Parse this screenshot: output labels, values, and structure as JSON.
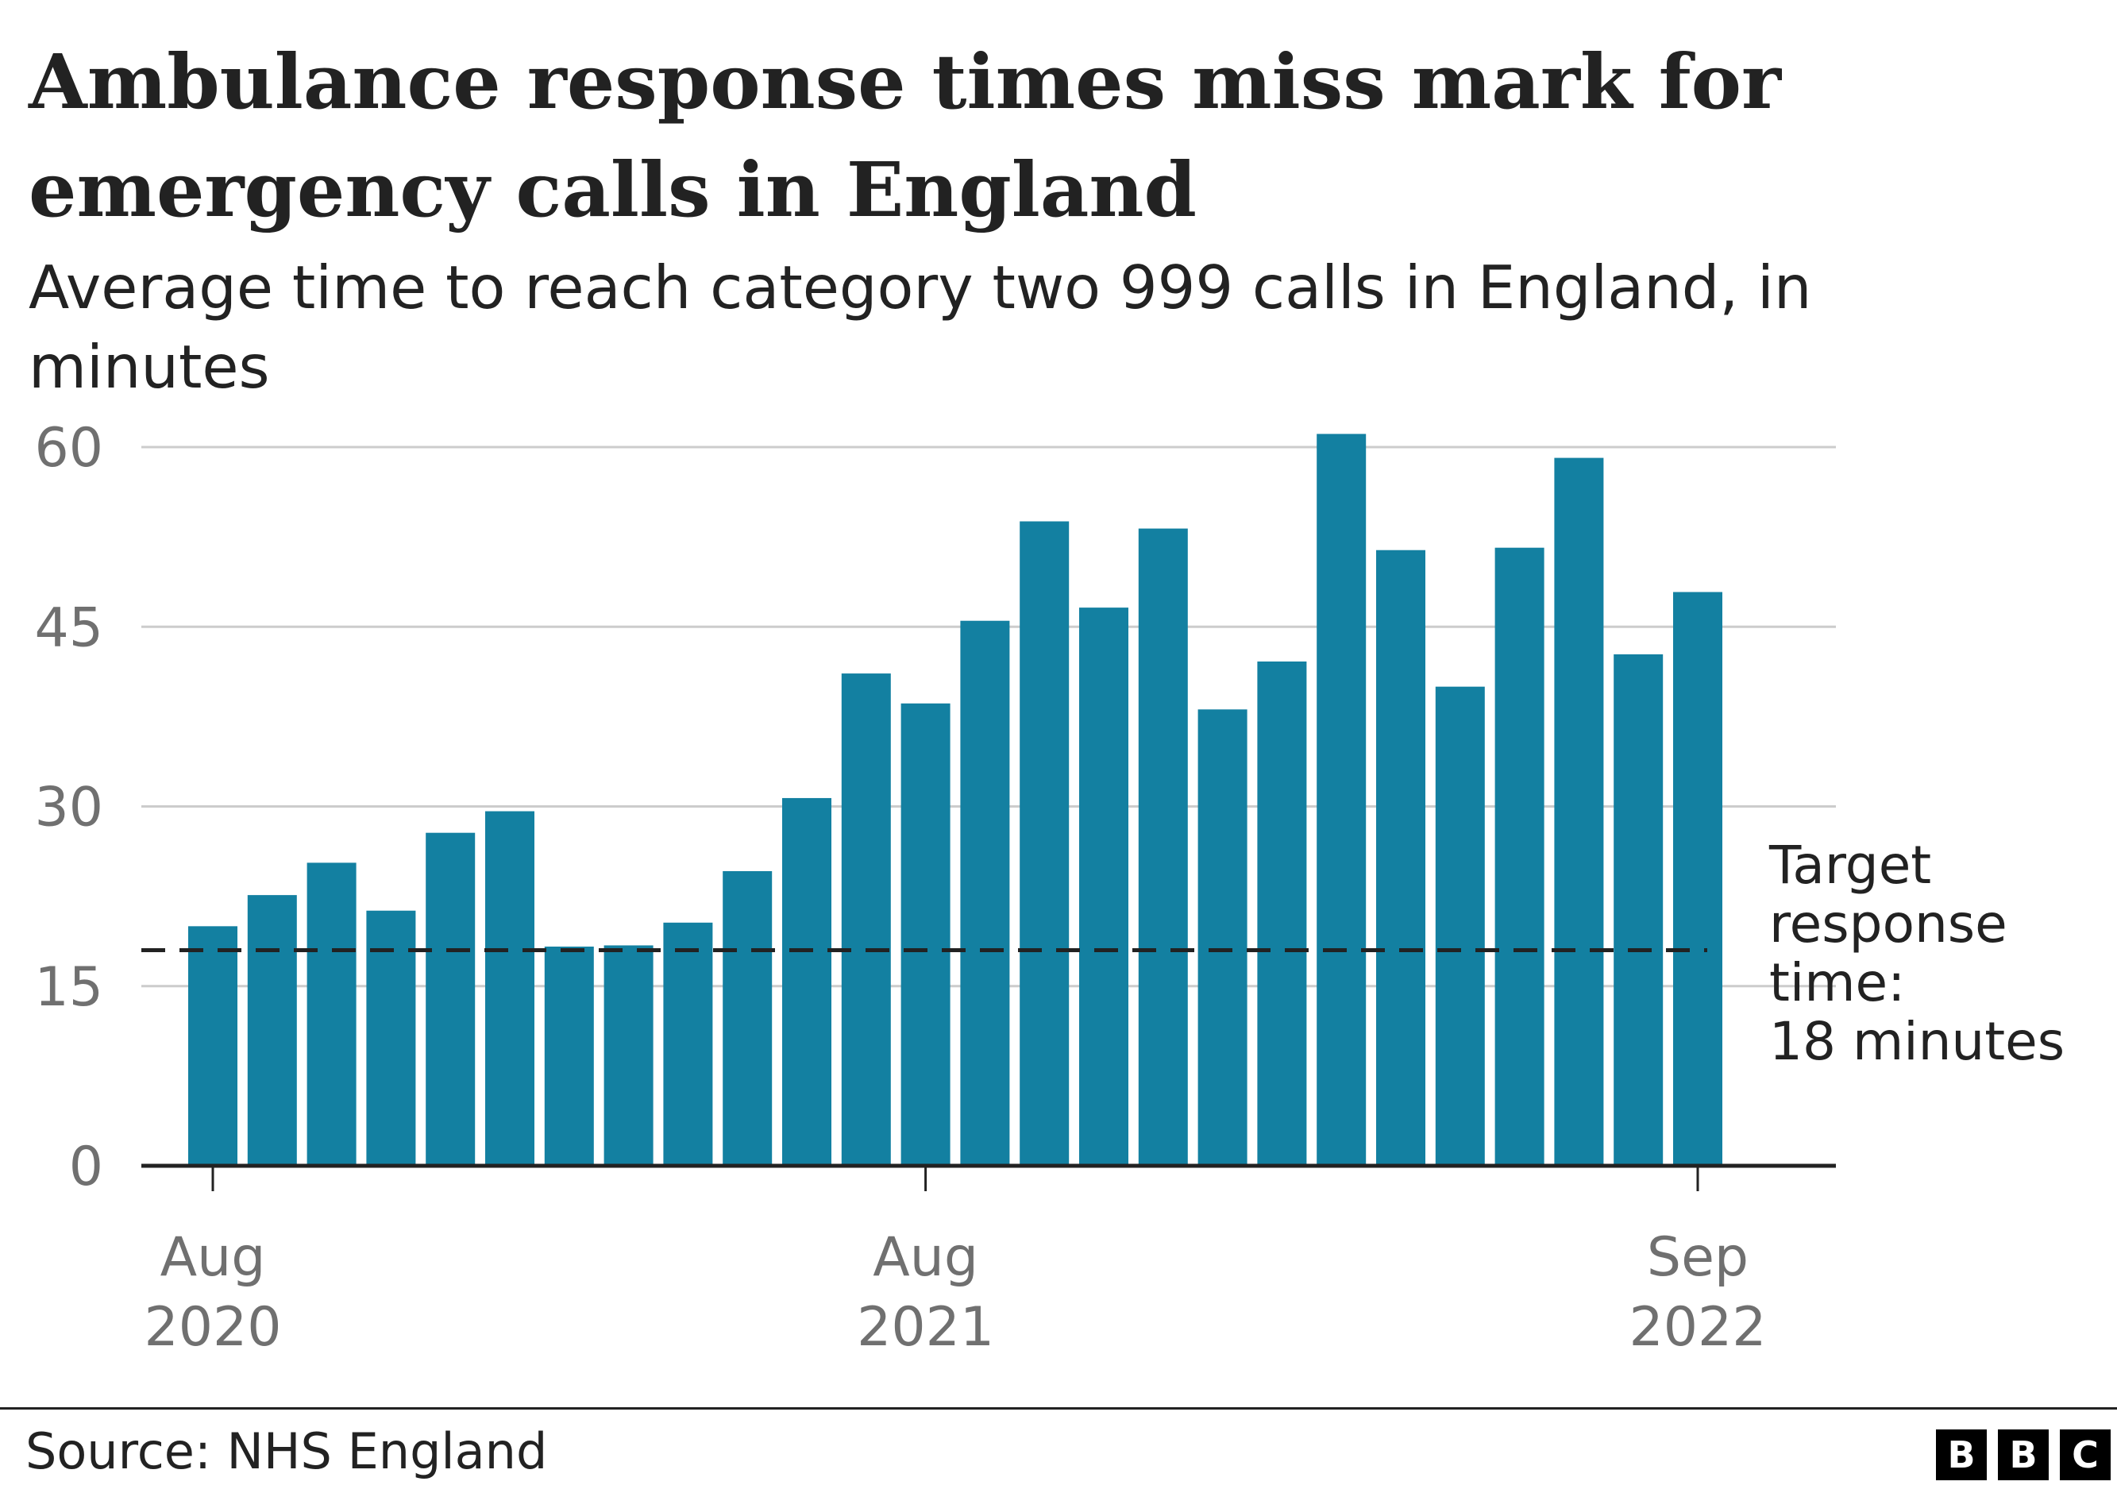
{
  "chart_data": {
    "type": "bar",
    "title": "Ambulance response times miss mark for emergency calls in England",
    "subtitle": "Average time to reach category two 999 calls in England, in minutes",
    "categories": [
      "Aug 2020",
      "Sep 2020",
      "Oct 2020",
      "Nov 2020",
      "Dec 2020",
      "Jan 2021",
      "Feb 2021",
      "Mar 2021",
      "Apr 2021",
      "May 2021",
      "Jun 2021",
      "Jul 2021",
      "Aug 2021",
      "Sep 2021",
      "Oct 2021",
      "Nov 2021",
      "Dec 2021",
      "Jan 2022",
      "Feb 2022",
      "Mar 2022",
      "Apr 2022",
      "May 2022",
      "Jun 2022",
      "Jul 2022",
      "Aug 2022",
      "Sep 2022"
    ],
    "values": [
      20.0,
      22.6,
      25.3,
      21.3,
      27.8,
      29.6,
      18.3,
      18.4,
      20.3,
      24.6,
      30.7,
      41.1,
      38.6,
      45.5,
      53.8,
      46.6,
      53.2,
      38.1,
      42.1,
      61.1,
      51.4,
      40.0,
      51.6,
      59.1,
      42.7,
      47.9
    ],
    "xlabel": "",
    "ylabel": "",
    "ylim": [
      0,
      60
    ],
    "yticks": [
      0,
      15,
      30,
      45,
      60
    ],
    "xtick_labels": [
      {
        "index": 0,
        "line1": "Aug",
        "line2": "2020"
      },
      {
        "index": 12,
        "line1": "Aug",
        "line2": "2021"
      },
      {
        "index": 25,
        "line1": "Sep",
        "line2": "2022"
      }
    ],
    "target_line": {
      "value": 18,
      "label_lines": [
        "Target",
        "response",
        "time:",
        "18 minutes"
      ]
    },
    "grid": true,
    "legend": "none",
    "bar_color": "#1380a1"
  },
  "footer": {
    "source": "Source: NHS England",
    "logo_letters": [
      "B",
      "B",
      "C"
    ]
  }
}
